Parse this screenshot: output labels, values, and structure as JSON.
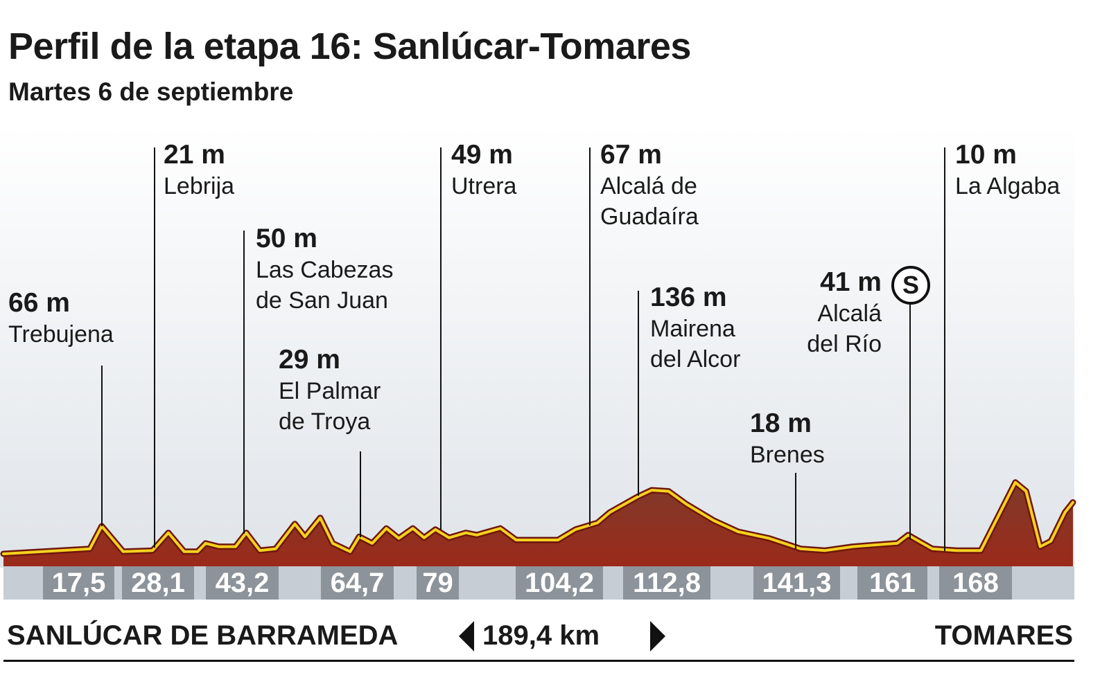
{
  "header": {
    "title": "Perfil de la etapa 16: Sanlúcar-Tomares",
    "subtitle": "Martes 6 de septiembre"
  },
  "chart_data": {
    "type": "area",
    "title": "Perfil de la etapa 16: Sanlúcar-Tomares",
    "subtitle": "Martes 6 de septiembre",
    "xlabel": "",
    "ylabel": "",
    "xlim": [
      0,
      189.4
    ],
    "grid": false,
    "colors": {
      "fill": "#8f2a1b",
      "line": "#f5d11f",
      "outline": "#6e170d",
      "km_bar": "#c6cdd4",
      "km_box": "#8c939a"
    },
    "profile": {
      "km": [
        0,
        15.3,
        17.4,
        21.2,
        26.4,
        29.2,
        32.0,
        34.4,
        35.8,
        38.1,
        41.1,
        43.0,
        45.4,
        48.2,
        51.6,
        53.4,
        56.1,
        58.3,
        61.4,
        63.0,
        65.3,
        67.8,
        70.0,
        72.5,
        74.5,
        76.5,
        78.9,
        81.9,
        83.8,
        88.0,
        90.8,
        98.2,
        101.3,
        105.2,
        107.4,
        112.3,
        114.8,
        117.8,
        120.9,
        125.8,
        130.1,
        135.6,
        141.2,
        145.5,
        150.4,
        154.1,
        158.3,
        160.2,
        164.5,
        168.8,
        173.1,
        179.2,
        181.1,
        183.6,
        185.5,
        188.0,
        189.4
      ],
      "elevation_m": [
        20,
        29,
        70,
        24,
        26,
        58,
        24,
        24,
        39,
        33,
        33,
        58,
        26,
        29,
        74,
        51,
        85,
        39,
        24,
        51,
        39,
        66,
        48,
        66,
        49,
        64,
        49,
        58,
        54,
        66,
        45,
        45,
        64,
        76,
        95,
        123,
        135,
        133,
        110,
        80,
        60,
        48,
        29,
        26,
        33,
        36,
        39,
        54,
        29,
        26,
        26,
        149,
        133,
        33,
        43,
        95,
        113
      ]
    },
    "waypoints": [
      {
        "name": "Trebujena",
        "name_lines": [
          "Trebujena"
        ],
        "altitude": "66 m",
        "km": "17,5"
      },
      {
        "name": "Lebrija",
        "name_lines": [
          "Lebrija"
        ],
        "altitude": "21 m",
        "km": "28,1"
      },
      {
        "name": "Las Cabezas de San Juan",
        "name_lines": [
          "Las Cabezas",
          "de San Juan"
        ],
        "altitude": "50 m",
        "km": "43,2"
      },
      {
        "name": "El Palmar de Troya",
        "name_lines": [
          "El Palmar",
          "de Troya"
        ],
        "altitude": "29 m",
        "km": "64,7"
      },
      {
        "name": "Utrera",
        "name_lines": [
          "Utrera"
        ],
        "altitude": "49 m",
        "km": "79"
      },
      {
        "name": "Alcalá de Guadaíra",
        "name_lines": [
          "Alcalá de",
          "Guadaíra"
        ],
        "altitude": "67 m",
        "km": "104,2"
      },
      {
        "name": "Mairena del Alcor",
        "name_lines": [
          "Mairena",
          "del Alcor"
        ],
        "altitude": "136 m",
        "km": "112,8"
      },
      {
        "name": "Brenes",
        "name_lines": [
          "Brenes"
        ],
        "altitude": "18 m",
        "km": "141,3"
      },
      {
        "name": "Alcalá del Río",
        "name_lines": [
          "Alcalá",
          "del Río"
        ],
        "altitude": "41 m",
        "km": "161",
        "sprint_icon": "S"
      },
      {
        "name": "La Algaba",
        "name_lines": [
          "La Algaba"
        ],
        "altitude": "10 m",
        "km": "168"
      }
    ]
  },
  "footer": {
    "start": "SANLÚCAR DE BARRAMEDA",
    "distance": "189,4 km",
    "finish": "TOMARES"
  }
}
